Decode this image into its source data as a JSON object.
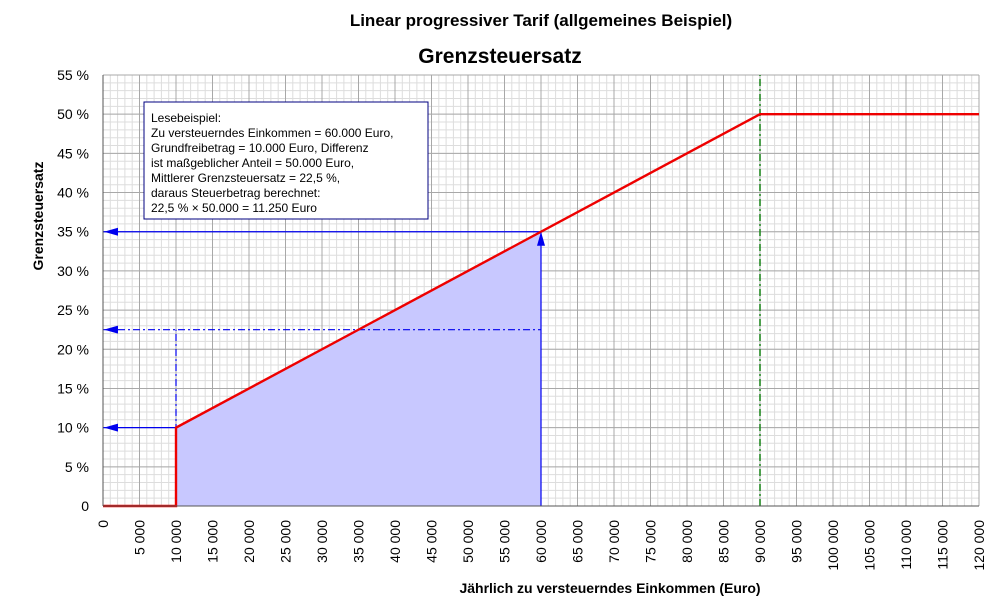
{
  "chart_data": {
    "type": "line",
    "title": "Linear progressiver Tarif (allgemeines Beispiel)",
    "subtitle": "Grenzsteuersatz",
    "xlabel": "Jährlich zu versteuerndes Einkommen (Euro)",
    "ylabel": "Grenzsteuersatz",
    "xlim": [
      0,
      120000
    ],
    "ylim": [
      0,
      55
    ],
    "grid": true,
    "x_ticks": [
      0,
      5000,
      10000,
      15000,
      20000,
      25000,
      30000,
      35000,
      40000,
      45000,
      50000,
      55000,
      60000,
      65000,
      70000,
      75000,
      80000,
      85000,
      90000,
      95000,
      100000,
      105000,
      110000,
      115000,
      120000
    ],
    "x_tick_labels": [
      "0",
      "5 000",
      "10 000",
      "15 000",
      "20 000",
      "25 000",
      "30 000",
      "35 000",
      "40 000",
      "45 000",
      "50 000",
      "55 000",
      "60 000",
      "65 000",
      "70 000",
      "75 000",
      "80 000",
      "85 000",
      "90 000",
      "95 000",
      "100 000",
      "105 000",
      "110 000",
      "115 000",
      "120 000"
    ],
    "y_ticks": [
      0,
      5,
      10,
      15,
      20,
      25,
      30,
      35,
      40,
      45,
      50,
      55
    ],
    "y_tick_labels": [
      "0",
      "5 %",
      "10 %",
      "15 %",
      "20 %",
      "25 %",
      "30 %",
      "35 %",
      "40 %",
      "45 %",
      "50 %",
      "55 %"
    ],
    "series": [
      {
        "color": "#ee0000",
        "x": [
          0,
          10000,
          10000,
          90000,
          120000
        ],
        "y": [
          0,
          0,
          10,
          50,
          50
        ]
      }
    ],
    "shaded_area": {
      "color": "#c8c8ff",
      "x": [
        10000,
        60000
      ],
      "y": [
        10,
        35
      ]
    },
    "reference_lines": [
      {
        "axis": "x",
        "value": 90000,
        "color": "#228822",
        "style": "dash-dot"
      },
      {
        "axis": "x",
        "value": 10000,
        "y_to": 22.5,
        "color": "#0000ee",
        "style": "dash-dot"
      },
      {
        "axis": "y",
        "value": 22.5,
        "x_to": 60000,
        "color": "#0000ee",
        "style": "dash-dot"
      },
      {
        "axis": "y",
        "value": 10,
        "x_to": 10000,
        "color": "#0000ee",
        "style": "solid"
      },
      {
        "axis": "y",
        "value": 35,
        "x_to": 60000,
        "color": "#0000ee",
        "style": "solid"
      },
      {
        "axis": "x",
        "value": 60000,
        "y_to": 35,
        "color": "#0000ee",
        "style": "solid"
      }
    ],
    "annotation": {
      "lines": [
        "Lesebeispiel:",
        "Zu versteuerndes Einkommen = 60.000 Euro,",
        "Grundfreibetrag = 10.000 Euro, Differenz",
        "ist maßgeblicher Anteil = 50.000 Euro,",
        "Mittlerer Grenzsteuersatz = 22,5 %,",
        "daraus Steuerbetrag berechnet:",
        "22,5 % × 50.000 = 11.250 Euro"
      ],
      "border_color": "#000080"
    }
  }
}
